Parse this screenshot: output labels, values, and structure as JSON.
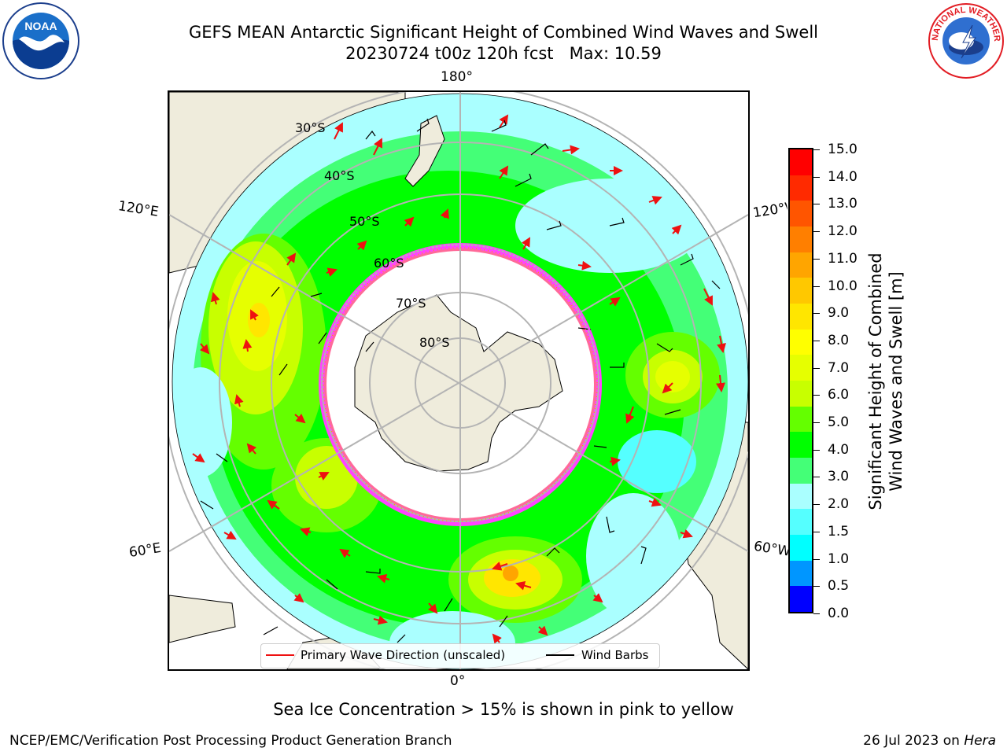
{
  "title": {
    "line1": "GEFS MEAN Antarctic Significant Height of Combined Wind Waves and Swell",
    "line2": "20230724 t00z 120h fcst   Max: 10.59"
  },
  "logos": {
    "left": {
      "name": "NOAA",
      "ring_text": "NATIONAL OCEANIC AND ATMOSPHERIC ADMINISTRATION · U.S. DEPARTMENT OF COMMERCE"
    },
    "right": {
      "name": "NATIONAL WEATHER SERVICE"
    }
  },
  "map": {
    "projection": "south polar stereographic",
    "lon_labels": {
      "top": "180°",
      "bottom": "0°",
      "left_upper": "120°E",
      "left_lower": "60°E",
      "right_upper": "120°W",
      "right_lower": "60°W"
    },
    "lat_labels": [
      "30°S",
      "40°S",
      "50°S",
      "60°S",
      "70°S",
      "80°S"
    ],
    "colors": {
      "land": "#efecdc",
      "ice": "#ffffff",
      "graticule": "#b4b4b4",
      "arrow": "#ee1111",
      "barb": "#000000",
      "sea_ice_edge": "#ff44ff"
    }
  },
  "colorbar": {
    "label_line1": "Significant Height of Combined",
    "label_line2": "Wind Waves and Swell [m]",
    "ticks": [
      "15.0",
      "14.0",
      "13.0",
      "12.0",
      "11.0",
      "10.0",
      "9.0",
      "8.0",
      "7.0",
      "6.0",
      "5.0",
      "4.0",
      "3.0",
      "2.0",
      "1.5",
      "1.0",
      "0.5",
      "0.0"
    ],
    "colors_top_to_bottom": [
      "#ff0000",
      "#ff2a00",
      "#ff5500",
      "#ff7f00",
      "#ffa500",
      "#ffc800",
      "#ffe600",
      "#ffff00",
      "#e6ff00",
      "#c8ff00",
      "#64ff00",
      "#00ff00",
      "#44ff77",
      "#aaffff",
      "#55ffff",
      "#00ffff",
      "#0096ff",
      "#0000ff"
    ]
  },
  "legend": {
    "wave_direction": "Primary Wave Direction (unscaled)",
    "wind_barbs": "Wind Barbs"
  },
  "note": "Sea Ice Concentration > 15% is shown in pink to yellow",
  "footer": {
    "left": "NCEP/EMC/Verification Post Processing Product Generation Branch",
    "right_date": "26 Jul 2023 on",
    "right_machine": "Hera"
  }
}
